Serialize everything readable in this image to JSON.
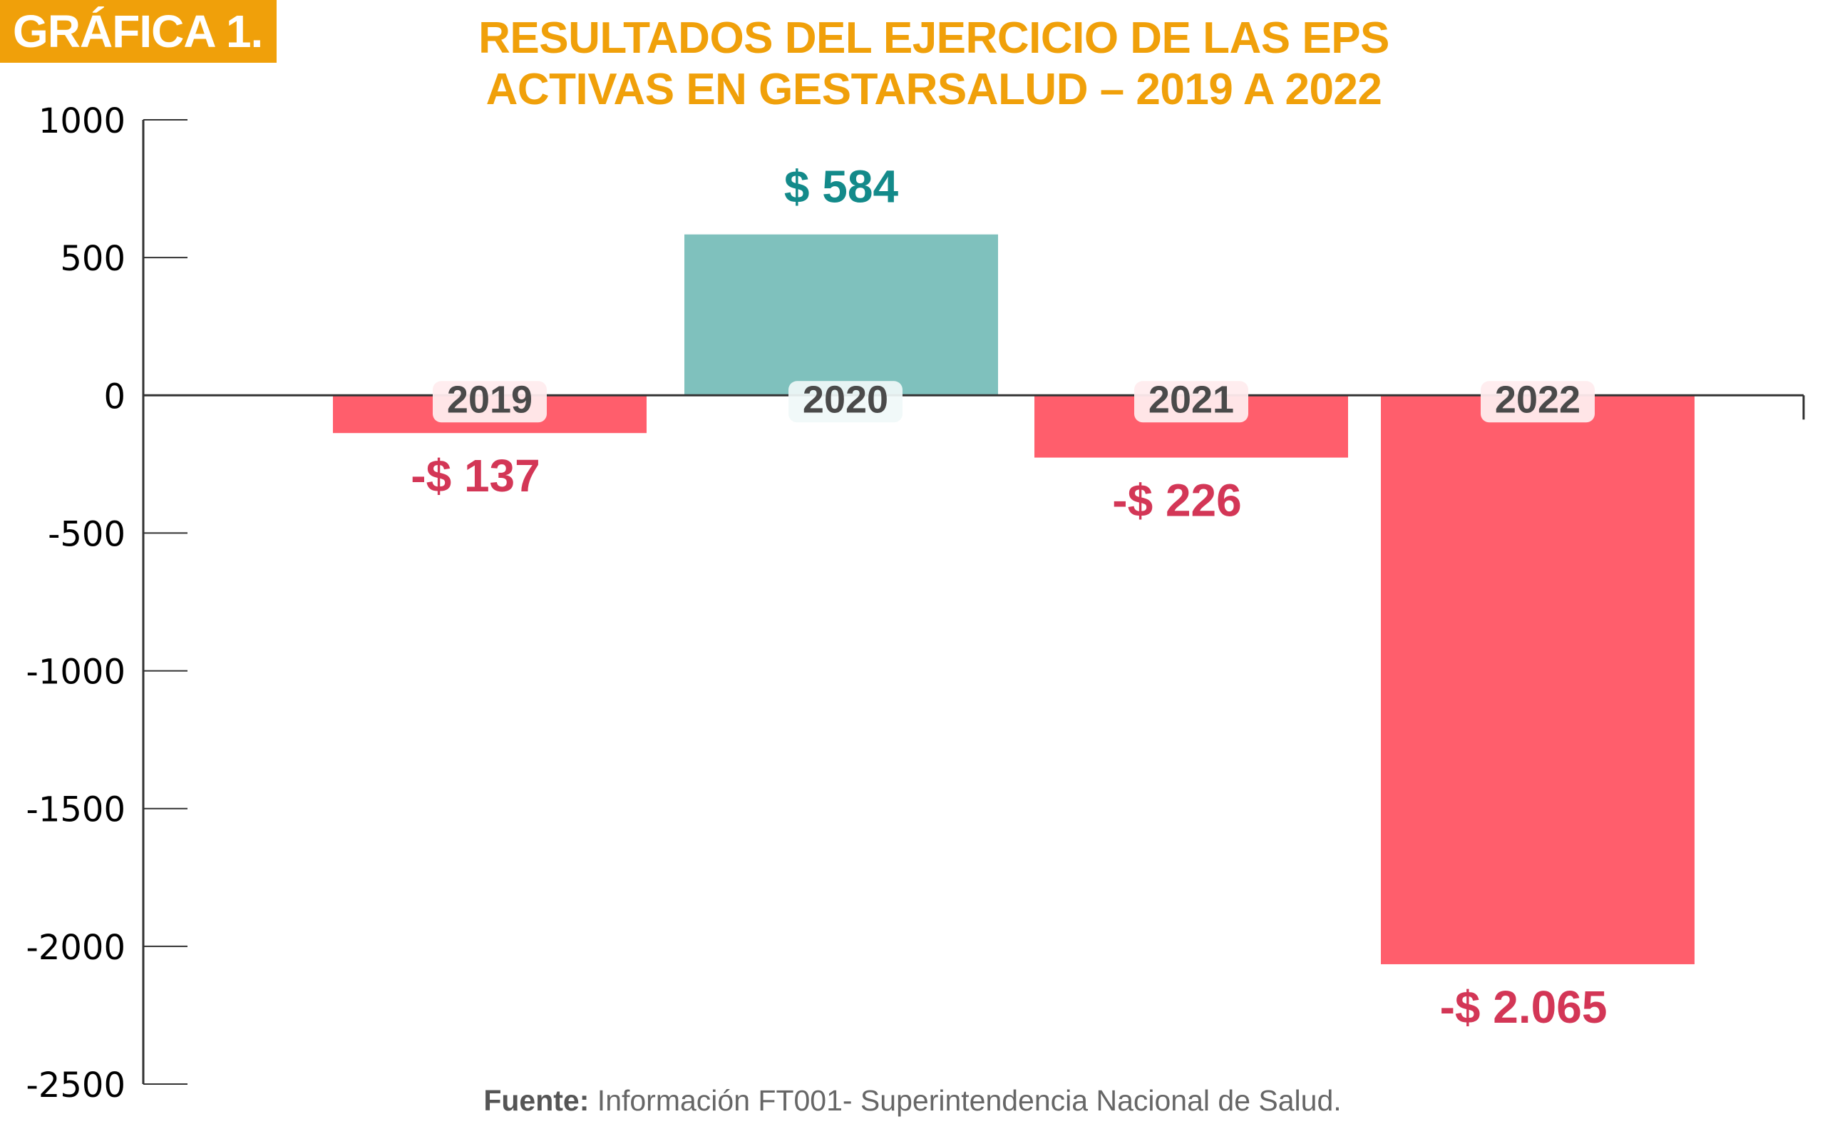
{
  "badge": {
    "label": "GRÁFICA 1."
  },
  "title": {
    "line1": "RESULTADOS DEL EJERCICIO DE LAS EPS",
    "line2": "ACTIVAS EN GESTARSALUD – 2019 A 2022"
  },
  "source": {
    "label": "Fuente:",
    "text": "Información FT001- Superintendencia Nacional de Salud."
  },
  "colors": {
    "accent": "#f0a00a",
    "positive_bar": "#7fc1bd",
    "negative_bar": "#ff5e6c",
    "positive_label": "#138a8a",
    "negative_label": "#d33656",
    "category_label": "#4a4a4a",
    "axis": "#333333"
  },
  "chart_data": {
    "type": "bar",
    "title": "RESULTADOS DEL EJERCICIO DE LAS EPS ACTIVAS EN GESTARSALUD – 2019 A 2022",
    "xlabel": "",
    "ylabel": "",
    "categories": [
      "2019",
      "2020",
      "2021",
      "2022"
    ],
    "values": [
      -137,
      584,
      -226,
      -2065
    ],
    "data_labels": [
      "-$ 137",
      "$ 584",
      "-$ 226",
      "-$ 2.065"
    ],
    "ylim": [
      -2500,
      1000
    ],
    "yticks": [
      1000,
      500,
      0,
      -500,
      -1000,
      -1500,
      -2000,
      -2500
    ],
    "ytick_labels": [
      "1000",
      "500",
      "0",
      "-500",
      "-1000",
      "-1500",
      "-2000",
      "-2500"
    ],
    "grid": false,
    "legend": "none"
  }
}
